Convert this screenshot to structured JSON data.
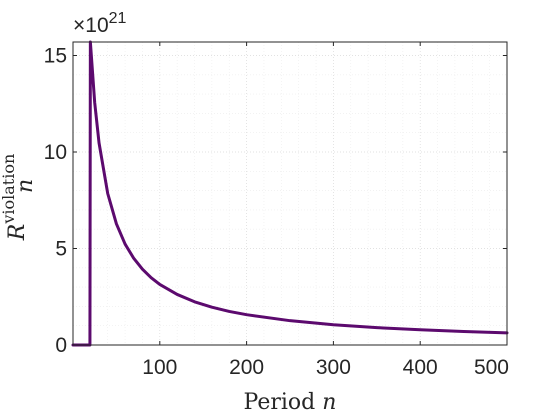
{
  "chart_data": {
    "type": "line",
    "title": "",
    "xlabel_text": "Period",
    "xlabel_var": "n",
    "ylabel_base": "R",
    "ylabel_sub": "n",
    "ylabel_sup": "violation",
    "exponent_base": "×10",
    "exponent_power": "21",
    "xlim": [
      0,
      500
    ],
    "ylim": [
      0,
      15.7
    ],
    "xticks": [
      100,
      200,
      300,
      400,
      500
    ],
    "xtick_labels": [
      "100",
      "200",
      "300",
      "400",
      "500"
    ],
    "yticks": [
      0,
      5,
      10,
      15
    ],
    "ytick_labels": [
      "0",
      "5",
      "10",
      "15"
    ],
    "grid": true,
    "minor_grid": true,
    "color": "#5c0a6e",
    "series": [
      {
        "x": [
          0,
          18,
          19.5,
          20,
          25,
          30,
          40,
          50,
          60,
          70,
          80,
          90,
          100,
          120,
          140,
          160,
          180,
          200,
          250,
          300,
          350,
          400,
          450,
          500
        ],
        "values": [
          0,
          0,
          0,
          15.7,
          12.56,
          10.47,
          7.85,
          6.28,
          5.23,
          4.49,
          3.93,
          3.49,
          3.14,
          2.62,
          2.24,
          1.96,
          1.74,
          1.57,
          1.26,
          1.05,
          0.9,
          0.79,
          0.7,
          0.63
        ]
      }
    ]
  }
}
